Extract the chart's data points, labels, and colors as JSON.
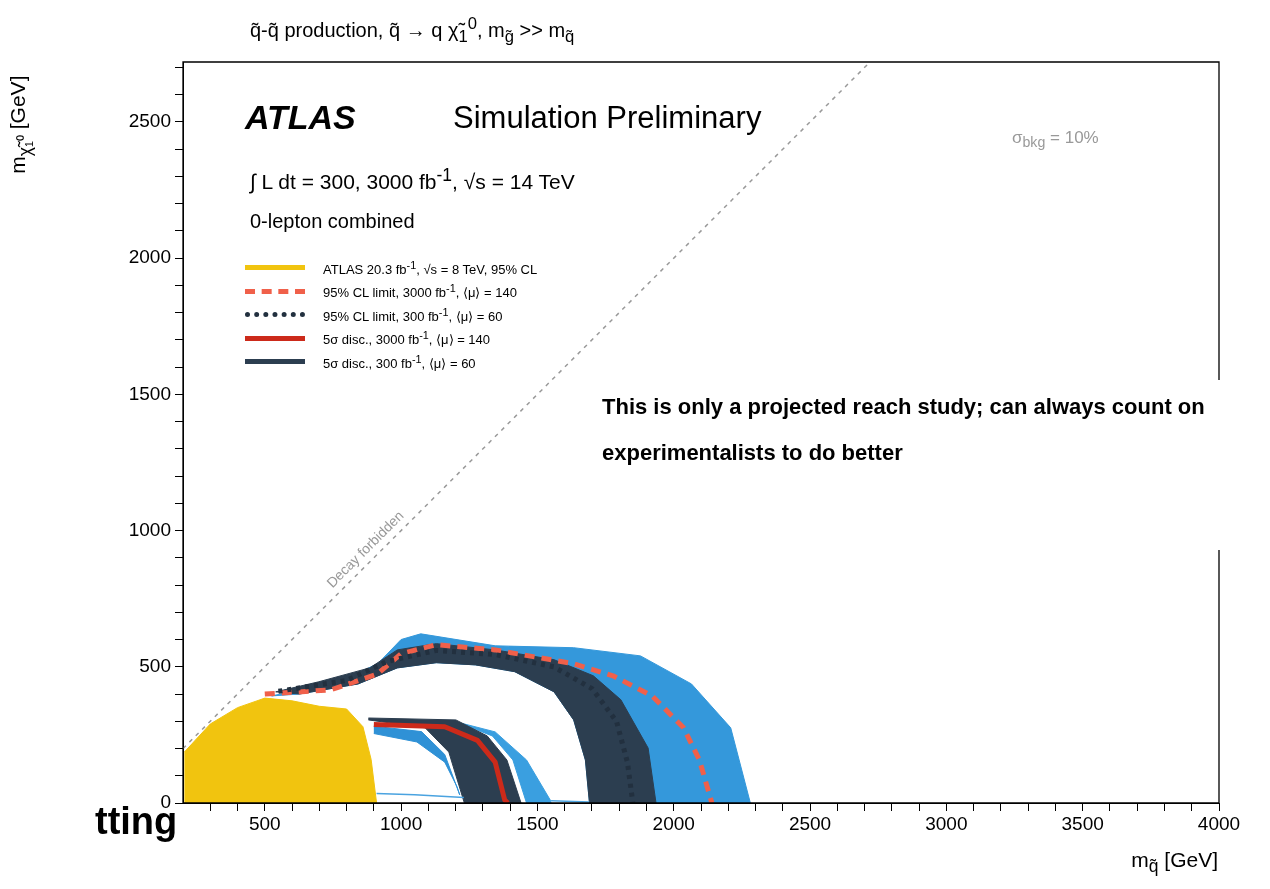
{
  "chart_data": {
    "type": "line",
    "title": "q̃-q̃ production, q̃ → q χ̃$_{1}$$^{0}$, m$_{g̃}$ >> m$_{q̃}$",
    "xlabel": "m$_{q̃}$ [GeV]",
    "ylabel": "m$_{χ̃₁⁰}$ [GeV]",
    "xlim": [
      200,
      4000
    ],
    "ylim": [
      0,
      2720
    ],
    "xticks": [
      {
        "value": 300,
        "label": null
      },
      {
        "value": 400,
        "label": null
      },
      500,
      {
        "value": 600,
        "label": null
      },
      {
        "value": 700,
        "label": null
      },
      {
        "value": 800,
        "label": null
      },
      {
        "value": 900,
        "label": null
      },
      1000,
      {
        "value": 1100,
        "label": null
      },
      {
        "value": 1200,
        "label": null
      },
      {
        "value": 1300,
        "label": null
      },
      {
        "value": 1400,
        "label": null
      },
      1500,
      {
        "value": 1600,
        "label": null
      },
      {
        "value": 1700,
        "label": null
      },
      {
        "value": 1800,
        "label": null
      },
      {
        "value": 1900,
        "label": null
      },
      2000,
      {
        "value": 2100,
        "label": null
      },
      {
        "value": 2200,
        "label": null
      },
      {
        "value": 2300,
        "label": null
      },
      {
        "value": 2400,
        "label": null
      },
      2500,
      {
        "value": 2600,
        "label": null
      },
      {
        "value": 2700,
        "label": null
      },
      {
        "value": 2800,
        "label": null
      },
      {
        "value": 2900,
        "label": null
      },
      3000,
      {
        "value": 3100,
        "label": null
      },
      {
        "value": 3200,
        "label": null
      },
      {
        "value": 3300,
        "label": null
      },
      {
        "value": 3400,
        "label": null
      },
      3500,
      {
        "value": 3600,
        "label": null
      },
      {
        "value": 3700,
        "label": null
      },
      {
        "value": 3800,
        "label": null
      },
      {
        "value": 3900,
        "label": null
      },
      4000
    ],
    "yticks": [
      0,
      {
        "value": 100,
        "label": null
      },
      {
        "value": 200,
        "label": null
      },
      {
        "value": 300,
        "label": null
      },
      {
        "value": 400,
        "label": null
      },
      500,
      {
        "value": 600,
        "label": null
      },
      {
        "value": 700,
        "label": null
      },
      {
        "value": 800,
        "label": null
      },
      {
        "value": 900,
        "label": null
      },
      1000,
      {
        "value": 1100,
        "label": null
      },
      {
        "value": 1200,
        "label": null
      },
      {
        "value": 1300,
        "label": null
      },
      {
        "value": 1400,
        "label": null
      },
      1500,
      {
        "value": 1600,
        "label": null
      },
      {
        "value": 1700,
        "label": null
      },
      {
        "value": 1800,
        "label": null
      },
      {
        "value": 1900,
        "label": null
      },
      2000,
      {
        "value": 2100,
        "label": null
      },
      {
        "value": 2200,
        "label": null
      },
      {
        "value": 2300,
        "label": null
      },
      {
        "value": 2400,
        "label": null
      },
      2500,
      {
        "value": 2600,
        "label": null
      },
      {
        "value": 2700,
        "label": null
      }
    ],
    "grid": false,
    "legend": "top left",
    "marker": "none",
    "series": [
      {
        "color": "#999999",
        "line_style": "dotted",
        "x": [
          200,
          2720
        ],
        "values": [
          200,
          2720
        ]
      },
      {
        "type": "area",
        "color": "#3498db",
        "x": [
          525,
          770,
          914,
          1000,
          1072,
          1345,
          1633,
          1878,
          2065,
          2209,
          2281,
          1691,
          1676,
          1633,
          1561,
          1417,
          1273,
          1129,
          986,
          842,
          626,
          525
        ],
        "values": [
          393,
          445,
          511,
          600,
          621,
          577,
          570,
          540,
          437,
          276,
          0,
          0,
          158,
          305,
          408,
          482,
          507,
          515,
          496,
          437,
          400,
          393
        ]
      },
      {
        "type": "area",
        "color": "#2c3e50",
        "x": [
          540,
          698,
          885,
          986,
          1129,
          1345,
          1561,
          1705,
          1806,
          1906,
          1935,
          1691,
          1676,
          1633,
          1561,
          1417,
          1273,
          1129,
          986,
          842,
          626,
          540
        ],
        "values": [
          408,
          445,
          496,
          562,
          585,
          562,
          526,
          467,
          379,
          202,
          0,
          0,
          158,
          305,
          408,
          482,
          507,
          515,
          496,
          437,
          400,
          408
        ]
      },
      {
        "type": "area",
        "color": "#3a9fe0",
        "x": [
          1201,
          1345,
          1460,
          1547,
          1550,
          1460,
          1410,
          1335,
          1201
        ],
        "values": [
          298,
          261,
          158,
          11,
          0,
          0,
          158,
          246,
          298
        ]
      },
      {
        "type": "area",
        "color": "#2f91d6",
        "x": [
          900,
          1075,
          1160,
          1215,
          1205,
          1160,
          1058,
          900
        ],
        "values": [
          282,
          262,
          178,
          30,
          60,
          150,
          224,
          255
        ]
      },
      {
        "color": "#4aa3e0",
        "x": [
          910,
          1050,
          1230,
          1400,
          1550,
          1690
        ],
        "values": [
          35,
          30,
          20,
          null,
          8,
          4
        ]
      },
      {
        "type": "area",
        "name": "ATLAS 20.3 fb$^{-1}$, √s = 8 TeV, 95% CL",
        "color": "#f1c40f",
        "x": [
          205,
          300,
          400,
          500,
          600,
          700,
          800,
          860,
          890,
          910,
          205
        ],
        "values": [
          187,
          290,
          350,
          385,
          375,
          355,
          345,
          280,
          160,
          0,
          0
        ]
      },
      {
        "name": "95% CL limit, 3000 fb$^{-1}$, ⟨μ⟩ = 140",
        "color": "#f0604a",
        "line_style": "dashed",
        "x": [
          500,
          741,
          914,
          1000,
          1129,
          1345,
          1633,
          1777,
          1921,
          2036,
          2094,
          2140
        ],
        "values": [
          400,
          415,
          474,
          548,
          581,
          562,
          511,
          467,
          393,
          276,
          158,
          0
        ]
      },
      {
        "name": "95% CL limit, 300 fb$^{-1}$, ⟨μ⟩ = 60",
        "color": "#22303f",
        "line_style": "dotted",
        "x": [
          550,
          800,
          950,
          1129,
          1345,
          1560,
          1700,
          1790,
          1830,
          1850
        ],
        "values": [
          410,
          450,
          520,
          560,
          545,
          500,
          420,
          300,
          150,
          0
        ]
      },
      {
        "name": "5σ disc., 3000 fb$^{-1}$, ⟨μ⟩ = 140",
        "color": "#cc2a1a",
        "line_style": "solid",
        "x": [
          900,
          1160,
          1280,
          1345,
          1380,
          1392
        ],
        "values": [
          288,
          280,
          230,
          150,
          11,
          0
        ]
      },
      {
        "type": "area",
        "name": "5σ disc., 300 fb$^{-1}$, ⟨μ⟩ = 60",
        "color": "#2c3e50",
        "x": [
          880,
          1201,
          1316,
          1388,
          1440,
          1232,
          1175,
          1088,
          880
        ],
        "values": [
          312,
          305,
          246,
          158,
          0,
          0,
          187,
          276,
          305
        ]
      }
    ],
    "annotations": [
      "ATLAS",
      "Simulation Preliminary",
      "∫ L dt = 300, 3000 fb$^{-1}$, √s = 14 TeV",
      "0-lepton combined",
      "σ$_{bkg}$ = 10%",
      {
        "text": "Decay forbidden",
        "x": 900,
        "y": 900
      },
      "This is only a projected reach study; can always count on experimentalists to do better",
      "tting"
    ]
  }
}
